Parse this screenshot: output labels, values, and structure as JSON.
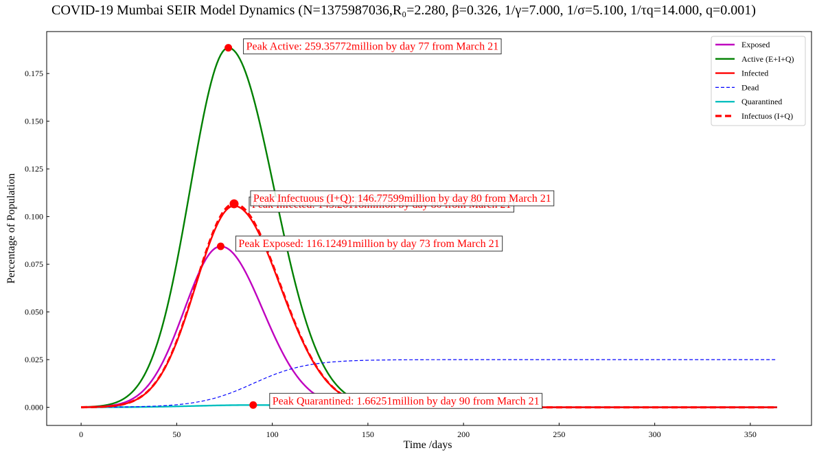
{
  "chart_data": {
    "type": "line",
    "title": "COVID-19 Mumbai SEIR Model Dynamics (N=1375987036,R₀=2.280, β=0.326, 1/γ=7.000, 1/σ=5.100, 1/τq=14.000, q=0.001)",
    "xlabel": "Time /days",
    "ylabel": "Percentage of Population",
    "xlim": [
      -18,
      382
    ],
    "ylim": [
      -0.0095,
      0.197
    ],
    "x_ticks": [
      0,
      50,
      100,
      150,
      200,
      250,
      300,
      350
    ],
    "y_ticks": [
      0.0,
      0.025,
      0.05,
      0.075,
      0.1,
      0.125,
      0.15,
      0.175
    ],
    "x_range": [
      0,
      364
    ],
    "legend_position": "top-right",
    "series": [
      {
        "name": "Exposed",
        "color": "#bf00bf",
        "style": "solid",
        "peak_x": 73,
        "peak_y": 0.0844,
        "left_width": 19,
        "right_width": 22,
        "base": 0.0
      },
      {
        "name": "Active (E+I+Q)",
        "color": "#008000",
        "style": "solid",
        "peak_x": 77,
        "peak_y": 0.1885,
        "left_width": 20,
        "right_width": 24,
        "base": 0.0
      },
      {
        "name": "Infected",
        "color": "#ff0000",
        "style": "solid",
        "peak_x": 80,
        "peak_y": 0.1056,
        "left_width": 20,
        "right_width": 24,
        "base": 0.0
      },
      {
        "name": "Dead",
        "color": "#0000ff",
        "style": "dashed-thin",
        "sigmoid_mid": 90,
        "sigmoid_scale": 14,
        "sigmoid_max": 0.025
      },
      {
        "name": "Quarantined",
        "color": "#00bfbf",
        "style": "solid",
        "peak_x": 90,
        "peak_y": 0.0012,
        "left_width": 30,
        "right_width": 30,
        "base": 0.0
      },
      {
        "name": "Infectuos (I+Q)",
        "color": "#ff0000",
        "style": "dashed-thick",
        "peak_x": 80,
        "peak_y": 0.1067,
        "left_width": 20,
        "right_width": 24,
        "base": 0.0
      }
    ],
    "peaks": [
      {
        "label": "Peak Active: 259.35772million by day 77 from March 21",
        "x": 77,
        "y": 0.1885
      },
      {
        "label": "Peak Infectuous (I+Q): 146.77599million by day 80 from March 21",
        "x": 80,
        "y": 0.1067
      },
      {
        "label": "Peak Exposed: 116.12491million by day 73 from March 21",
        "x": 73,
        "y": 0.0844
      },
      {
        "label": "Peak Quarantined: 1.66251million by day 90 from March 21",
        "x": 90,
        "y": 0.0012
      }
    ],
    "ghost_label": "Peak Infected: 145.26118million by day 80 from March 21"
  }
}
